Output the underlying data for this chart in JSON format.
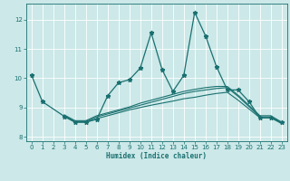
{
  "title": "",
  "xlabel": "Humidex (Indice chaleur)",
  "xlim": [
    -0.5,
    23.5
  ],
  "ylim": [
    7.85,
    12.55
  ],
  "yticks": [
    8,
    9,
    10,
    11,
    12
  ],
  "xticks": [
    0,
    1,
    2,
    3,
    4,
    5,
    6,
    7,
    8,
    9,
    10,
    11,
    12,
    13,
    14,
    15,
    16,
    17,
    18,
    19,
    20,
    21,
    22,
    23
  ],
  "bg_color": "#cce8e8",
  "line_color": "#1a7070",
  "grid_color": "#ffffff",
  "series": [
    {
      "x": [
        0,
        1,
        3,
        4,
        5,
        6,
        7,
        8,
        9,
        10,
        11,
        12,
        13,
        14,
        15,
        16,
        17,
        18,
        19,
        20,
        21,
        22,
        23
      ],
      "y": [
        10.1,
        9.2,
        8.7,
        8.5,
        8.5,
        8.6,
        9.4,
        9.85,
        9.95,
        10.35,
        11.55,
        10.3,
        9.55,
        10.1,
        12.25,
        11.45,
        10.4,
        9.6,
        9.6,
        9.2,
        8.65,
        8.65,
        8.5
      ],
      "marker": "*",
      "markersize": 3.5,
      "linewidth": 0.9
    },
    {
      "x": [
        3,
        4,
        5,
        6,
        7,
        8,
        9,
        10,
        11,
        12,
        13,
        14,
        15,
        16,
        17,
        18,
        19,
        21,
        22,
        23
      ],
      "y": [
        8.7,
        8.5,
        8.5,
        8.62,
        8.72,
        8.82,
        8.92,
        9.0,
        9.08,
        9.15,
        9.22,
        9.3,
        9.35,
        9.42,
        9.48,
        9.52,
        9.25,
        8.65,
        8.65,
        8.45
      ],
      "marker": null,
      "markersize": 0,
      "linewidth": 0.8
    },
    {
      "x": [
        3,
        4,
        5,
        6,
        7,
        8,
        9,
        10,
        11,
        12,
        13,
        14,
        15,
        16,
        17,
        18,
        19,
        21,
        22,
        23
      ],
      "y": [
        8.72,
        8.52,
        8.52,
        8.68,
        8.78,
        8.88,
        8.98,
        9.08,
        9.18,
        9.28,
        9.38,
        9.48,
        9.55,
        9.6,
        9.65,
        9.68,
        9.38,
        8.68,
        8.68,
        8.48
      ],
      "marker": null,
      "markersize": 0,
      "linewidth": 0.8
    },
    {
      "x": [
        3,
        4,
        5,
        6,
        7,
        8,
        9,
        10,
        11,
        12,
        13,
        14,
        15,
        16,
        17,
        18,
        19,
        21,
        22,
        23
      ],
      "y": [
        8.75,
        8.55,
        8.55,
        8.72,
        8.82,
        8.92,
        9.02,
        9.15,
        9.25,
        9.35,
        9.45,
        9.55,
        9.62,
        9.68,
        9.72,
        9.72,
        9.42,
        8.72,
        8.72,
        8.5
      ],
      "marker": null,
      "markersize": 0,
      "linewidth": 0.8
    }
  ]
}
